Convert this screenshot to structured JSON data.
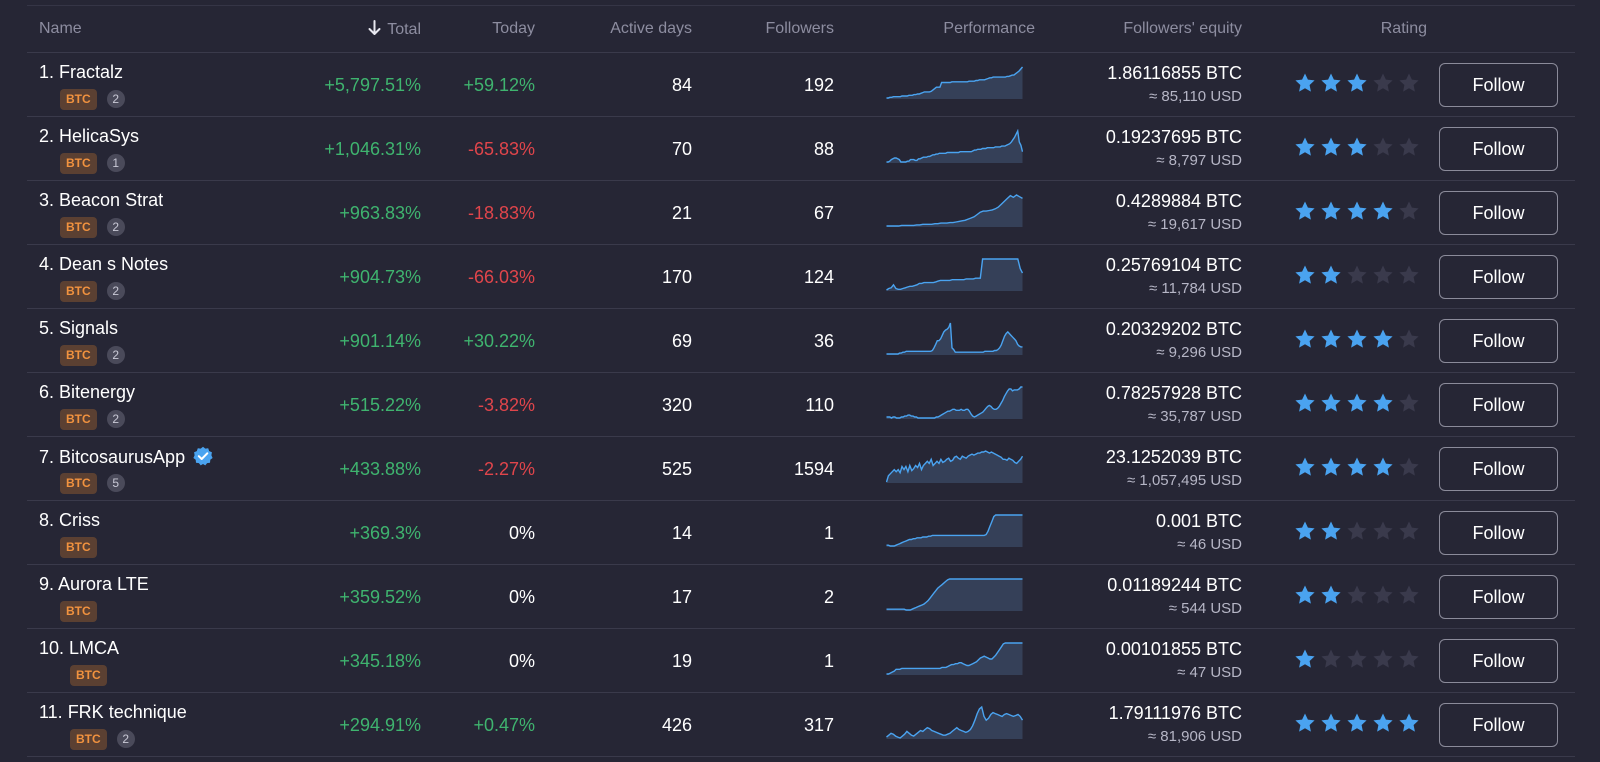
{
  "colors": {
    "background": "#262635",
    "positive": "#3fb46f",
    "negative": "#e0454b",
    "accent_blue": "#4aa3f0",
    "btc_badge": "#f1923f"
  },
  "header": {
    "name": "Name",
    "total": "Total",
    "today": "Today",
    "active_days": "Active days",
    "followers": "Followers",
    "performance": "Performance",
    "followers_equity": "Followers' equity",
    "rating": "Rating",
    "sort_icon": "arrow-down-icon"
  },
  "rows": [
    {
      "name": "1. Fractalz",
      "badge": "BTC",
      "count": "2",
      "verified": false,
      "total": "+5,797.51%",
      "today": "+59.12%",
      "today_sign": "pos",
      "active_days": "84",
      "followers": "192",
      "equity_btc": "1.86116855 BTC",
      "equity_usd": "≈ 85,110 USD",
      "rating": 3,
      "follow": "Follow",
      "perf": [
        2,
        2,
        3,
        3,
        4,
        4,
        4,
        4,
        4,
        5,
        5,
        5,
        5,
        6,
        6,
        6,
        7,
        7,
        8,
        8,
        9,
        10,
        11,
        11,
        11,
        11,
        12,
        14,
        16,
        18,
        18,
        18,
        25,
        25,
        25,
        25,
        25,
        25,
        26,
        26,
        26,
        26,
        26,
        26,
        26,
        26,
        26,
        26,
        27,
        27,
        27,
        27,
        28,
        28,
        29,
        29,
        29,
        29,
        30,
        31,
        32,
        32,
        33,
        33,
        33,
        33,
        33,
        33,
        33,
        33,
        34,
        34,
        35,
        36,
        36,
        38,
        40,
        42,
        45,
        48
      ]
    },
    {
      "name": "2. HelicaSys",
      "badge": "BTC",
      "count": "1",
      "verified": false,
      "total": "+1,046.31%",
      "today": "-65.83%",
      "today_sign": "neg",
      "active_days": "70",
      "followers": "88",
      "equity_btc": "0.19237695 BTC",
      "equity_usd": "≈ 8,797 USD",
      "rating": 3,
      "follow": "Follow",
      "perf": [
        5,
        5,
        6,
        8,
        9,
        10,
        10,
        9,
        8,
        5,
        5,
        5,
        5,
        6,
        6,
        8,
        8,
        8,
        7,
        7,
        9,
        9,
        10,
        11,
        11,
        11,
        12,
        12,
        13,
        14,
        14,
        15,
        15,
        16,
        16,
        16,
        16,
        16,
        17,
        17,
        17,
        17,
        17,
        17,
        17,
        17,
        18,
        18,
        18,
        18,
        18,
        18,
        18,
        18,
        19,
        20,
        20,
        21,
        21,
        21,
        22,
        22,
        22,
        23,
        23,
        23,
        23,
        23,
        24,
        24,
        24,
        24,
        25,
        25,
        25,
        26,
        27,
        28,
        30,
        33,
        36,
        40,
        44,
        30,
        26,
        18
      ]
    },
    {
      "name": "3. Beacon Strat",
      "badge": "BTC",
      "count": "2",
      "verified": false,
      "total": "+963.83%",
      "today": "-18.83%",
      "today_sign": "neg",
      "active_days": "21",
      "followers": "67",
      "equity_btc": "0.4289884 BTC",
      "equity_usd": "≈ 19,617 USD",
      "rating": 4,
      "follow": "Follow",
      "perf": [
        2,
        2,
        2,
        2,
        2,
        3,
        3,
        3,
        3,
        3,
        4,
        4,
        5,
        5,
        5,
        5,
        6,
        6,
        7,
        7,
        7,
        8,
        8,
        9,
        10,
        11,
        12,
        14,
        16,
        18,
        22,
        26,
        28,
        28,
        29,
        30,
        32,
        35,
        40,
        45,
        50,
        55,
        52,
        56,
        53,
        50
      ]
    },
    {
      "name": "4. Dean s Notes",
      "badge": "BTC",
      "count": "2",
      "verified": false,
      "total": "+904.73%",
      "today": "-66.03%",
      "today_sign": "neg",
      "active_days": "170",
      "followers": "124",
      "equity_btc": "0.25769104 BTC",
      "equity_usd": "≈ 11,784 USD",
      "rating": 2,
      "follow": "Follow",
      "perf": [
        3,
        5,
        6,
        10,
        5,
        4,
        4,
        5,
        6,
        7,
        8,
        8,
        9,
        10,
        12,
        12,
        13,
        13,
        13,
        13,
        13,
        14,
        15,
        16,
        16,
        16,
        16,
        16,
        17,
        17,
        17,
        17,
        17,
        17,
        18,
        18,
        18,
        18,
        19,
        19,
        19,
        45,
        45,
        45,
        45,
        45,
        45,
        45,
        45,
        45,
        45,
        45,
        45,
        45,
        45,
        45,
        45,
        32,
        26
      ]
    },
    {
      "name": "5. Signals",
      "badge": "BTC",
      "count": "2",
      "verified": false,
      "total": "+901.14%",
      "today": "+30.22%",
      "today_sign": "pos",
      "active_days": "69",
      "followers": "36",
      "equity_btc": "0.20329202 BTC",
      "equity_usd": "≈ 9,296 USD",
      "rating": 4,
      "follow": "Follow",
      "perf": [
        5,
        5,
        5,
        5,
        5,
        5,
        5,
        5,
        6,
        6,
        7,
        7,
        8,
        8,
        8,
        8,
        8,
        8,
        8,
        8,
        8,
        8,
        8,
        8,
        8,
        8,
        8,
        8,
        9,
        12,
        16,
        20,
        20,
        22,
        26,
        30,
        32,
        33,
        35,
        40,
        12,
        10,
        7,
        7,
        7,
        7,
        7,
        7,
        7,
        7,
        7,
        7,
        7,
        7,
        7,
        7,
        7,
        7,
        7,
        7,
        8,
        8,
        8,
        8,
        8,
        8,
        9,
        9,
        10,
        12,
        15,
        20,
        25,
        28,
        30,
        28,
        26,
        24,
        22,
        20,
        16,
        14,
        13,
        13
      ]
    },
    {
      "name": "6. Bitenergy",
      "badge": "BTC",
      "count": "2",
      "verified": false,
      "total": "+515.22%",
      "today": "-3.82%",
      "today_sign": "neg",
      "active_days": "320",
      "followers": "110",
      "equity_btc": "0.78257928 BTC",
      "equity_usd": "≈ 35,787 USD",
      "rating": 4,
      "follow": "Follow",
      "perf": [
        9,
        9,
        9,
        8,
        9,
        9,
        8,
        8,
        8,
        9,
        9,
        10,
        10,
        11,
        11,
        10,
        10,
        9,
        9,
        8,
        8,
        8,
        8,
        8,
        8,
        8,
        8,
        8,
        8,
        8,
        9,
        9,
        10,
        11,
        12,
        13,
        14,
        15,
        15,
        16,
        17,
        17,
        16,
        16,
        16,
        17,
        16,
        16,
        17,
        17,
        15,
        12,
        10,
        9,
        10,
        11,
        12,
        13,
        14,
        16,
        18,
        20,
        21,
        20,
        18,
        17,
        17,
        18,
        20,
        23,
        26,
        30,
        33,
        36,
        38,
        38,
        36,
        37,
        37,
        37,
        38,
        40,
        40
      ]
    },
    {
      "name": "7. BitcosaurusApp",
      "badge": "BTC",
      "count": "5",
      "verified": true,
      "total": "+433.88%",
      "today": "-2.27%",
      "today_sign": "neg",
      "active_days": "525",
      "followers": "1594",
      "equity_btc": "23.1252039 BTC",
      "equity_usd": "≈ 1,057,495 USD",
      "rating": 4,
      "follow": "Follow",
      "perf": [
        8,
        14,
        16,
        18,
        20,
        18,
        20,
        17,
        23,
        20,
        23,
        18,
        24,
        19,
        21,
        24,
        22,
        26,
        20,
        24,
        26,
        28,
        26,
        30,
        24,
        26,
        28,
        26,
        30,
        27,
        28,
        30,
        31,
        28,
        29,
        32,
        33,
        31,
        30,
        33,
        32,
        31,
        33,
        34,
        35,
        34,
        35,
        36,
        36,
        37,
        37,
        38,
        37,
        36,
        37,
        36,
        35,
        34,
        33,
        32,
        30,
        30,
        29,
        31,
        30,
        29,
        27,
        26,
        28,
        30,
        33
      ]
    },
    {
      "name": "8. Criss",
      "badge": "BTC",
      "count": "",
      "verified": false,
      "total": "+369.3%",
      "today": "0%",
      "today_sign": "neu",
      "active_days": "14",
      "followers": "1",
      "equity_btc": "0.001 BTC",
      "equity_usd": "≈ 46 USD",
      "rating": 2,
      "follow": "Follow",
      "perf": [
        3,
        3,
        2,
        2,
        2,
        3,
        4,
        5,
        6,
        7,
        8,
        9,
        10,
        10,
        11,
        11,
        12,
        12,
        12,
        13,
        13,
        13,
        14,
        14,
        15,
        15,
        15,
        15,
        15,
        15,
        15,
        15,
        15,
        15,
        15,
        15,
        15,
        15,
        15,
        15,
        15,
        15,
        15,
        15,
        15,
        15,
        15,
        15,
        15,
        15,
        15,
        15,
        16,
        20,
        26,
        32,
        38,
        40,
        40,
        40,
        40,
        40,
        40,
        40,
        40,
        40,
        40,
        40,
        40,
        40,
        40,
        40
      ]
    },
    {
      "name": "9. Aurora LTE",
      "badge": "BTC",
      "count": "",
      "verified": false,
      "total": "+359.52%",
      "today": "0%",
      "today_sign": "neu",
      "active_days": "17",
      "followers": "2",
      "equity_btc": "0.01189244 BTC",
      "equity_usd": "≈ 544 USD",
      "rating": 2,
      "follow": "Follow",
      "perf": [
        2,
        2,
        2,
        2,
        2,
        2,
        2,
        2,
        2,
        2,
        1,
        1,
        1,
        2,
        3,
        4,
        5,
        6,
        7,
        8,
        10,
        12,
        15,
        18,
        21,
        24,
        27,
        29,
        31,
        33,
        35,
        37,
        38,
        38,
        38,
        38,
        38,
        38,
        38,
        38,
        38,
        38,
        38,
        38,
        38,
        38,
        38,
        38,
        38,
        38,
        38,
        38,
        38,
        38,
        38,
        38,
        38,
        38,
        38,
        38,
        38,
        38,
        38,
        38,
        38,
        38,
        38,
        38,
        38,
        38
      ]
    },
    {
      "name": "10. LMCA",
      "badge": "BTC",
      "count": "",
      "verified": false,
      "total": "+345.18%",
      "today": "0%",
      "today_sign": "neu",
      "active_days": "19",
      "followers": "1",
      "equity_btc": "0.00101855 BTC",
      "equity_usd": "≈ 47 USD",
      "rating": 1,
      "follow": "Follow",
      "perf": [
        2,
        2,
        3,
        4,
        5,
        7,
        7,
        7,
        8,
        8,
        8,
        8,
        8,
        8,
        8,
        8,
        8,
        8,
        8,
        8,
        8,
        8,
        8,
        8,
        8,
        8,
        8,
        8,
        8,
        9,
        9,
        9,
        10,
        11,
        12,
        12,
        13,
        13,
        14,
        14,
        13,
        12,
        11,
        11,
        12,
        13,
        14,
        15,
        17,
        19,
        20,
        21,
        20,
        19,
        18,
        18,
        20,
        22,
        25,
        28,
        31,
        34,
        35,
        35,
        35,
        35,
        35,
        35,
        35,
        35,
        35,
        35
      ]
    },
    {
      "name": "11. FRK technique",
      "badge": "BTC",
      "count": "2",
      "verified": false,
      "total": "+294.91%",
      "today": "+0.47%",
      "today_sign": "pos",
      "active_days": "426",
      "followers": "317",
      "equity_btc": "1.79111976 BTC",
      "equity_usd": "≈ 81,906 USD",
      "rating": 5,
      "follow": "Follow",
      "perf": [
        8,
        10,
        12,
        11,
        9,
        8,
        7,
        9,
        11,
        14,
        12,
        10,
        9,
        11,
        13,
        15,
        14,
        16,
        18,
        17,
        15,
        14,
        13,
        12,
        11,
        10,
        10,
        11,
        12,
        14,
        16,
        18,
        16,
        15,
        14,
        13,
        14,
        16,
        20,
        26,
        33,
        38,
        40,
        30,
        26,
        28,
        32,
        34,
        33,
        32,
        31,
        30,
        32,
        33,
        32,
        31,
        30,
        31,
        32,
        30,
        26
      ]
    }
  ]
}
